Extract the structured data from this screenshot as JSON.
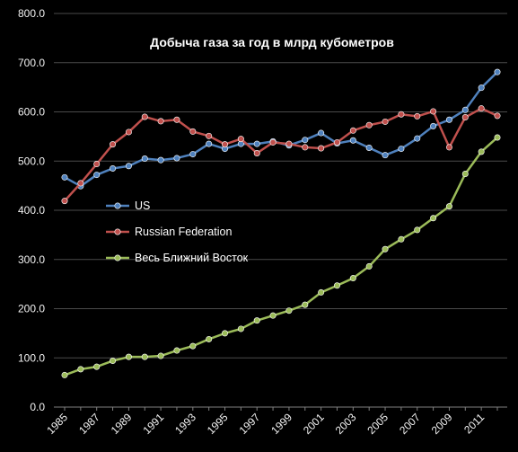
{
  "chart_data": {
    "type": "line",
    "title": "Добыча газа за год в млрд кубометров",
    "xlabel": "",
    "ylabel": "",
    "ylim": [
      0,
      800
    ],
    "yticks": [
      "0.0",
      "100.0",
      "200.0",
      "300.0",
      "400.0",
      "500.0",
      "600.0",
      "700.0",
      "800.0"
    ],
    "xtick_labels": [
      "1985",
      "1987",
      "1989",
      "1991",
      "1993",
      "1995",
      "1997",
      "1999",
      "2001",
      "2003",
      "2005",
      "2007",
      "2009",
      "2011"
    ],
    "x": [
      1985,
      1986,
      1987,
      1988,
      1989,
      1990,
      1991,
      1992,
      1993,
      1994,
      1995,
      1996,
      1997,
      1998,
      1999,
      2000,
      2001,
      2002,
      2003,
      2004,
      2005,
      2006,
      2007,
      2008,
      2009,
      2010,
      2011,
      2012
    ],
    "grid": true,
    "legend_position": "left-middle",
    "series": [
      {
        "name": "US",
        "color": "#4f81bd",
        "values": [
          467,
          449,
          472,
          485,
          490,
          505,
          502,
          506,
          514,
          535,
          525,
          535,
          535,
          540,
          532,
          543,
          557,
          536,
          542,
          527,
          512,
          525,
          546,
          571,
          584,
          604,
          649,
          681
        ]
      },
      {
        "name": "Russian Federation",
        "color": "#c0504d",
        "values": [
          419,
          455,
          494,
          534,
          559,
          590,
          581,
          584,
          560,
          551,
          534,
          545,
          516,
          538,
          535,
          528,
          526,
          538,
          562,
          573,
          580,
          595,
          591,
          601,
          528,
          589,
          607,
          592
        ]
      },
      {
        "name": "Весь Ближний Восток",
        "color": "#9bbb59",
        "values": [
          65,
          77,
          82,
          94,
          102,
          102,
          104,
          115,
          124,
          138,
          150,
          159,
          176,
          186,
          196,
          208,
          233,
          247,
          262,
          286,
          321,
          341,
          360,
          384,
          408,
          474,
          519,
          548
        ]
      }
    ]
  }
}
